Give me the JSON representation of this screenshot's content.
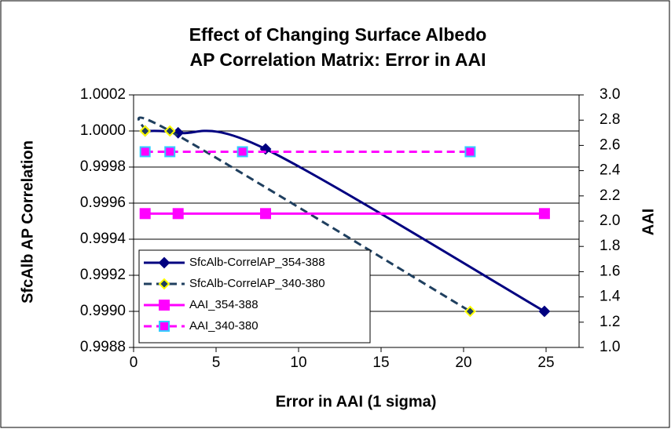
{
  "chart_data": {
    "type": "line",
    "title": [
      "Effect of Changing Surface Albedo",
      "AP Correlation Matrix: Error in AAI"
    ],
    "x_label": "Error in AAI (1 sigma)",
    "y_label": "SfcAlb AP Correlation",
    "y2_label": "AAI",
    "xlim": [
      0,
      27
    ],
    "xticks": [
      0,
      5,
      10,
      15,
      20,
      25
    ],
    "ylim": [
      0.9988,
      1.0002
    ],
    "yticks": [
      {
        "value": 0.9988,
        "label": "0.9988"
      },
      {
        "value": 0.999,
        "label": "0.9990"
      },
      {
        "value": 0.9992,
        "label": "0.9992"
      },
      {
        "value": 0.9994,
        "label": "0.9994"
      },
      {
        "value": 0.9996,
        "label": "0.9996"
      },
      {
        "value": 0.9998,
        "label": "0.9998"
      },
      {
        "value": 1.0,
        "label": "1.0000"
      },
      {
        "value": 1.0002,
        "label": "1.0002"
      }
    ],
    "y2lim": [
      1.0,
      3.0
    ],
    "y2ticks": [
      {
        "value": 1.0,
        "label": "1.0"
      },
      1.2,
      1.4,
      1.6,
      1.8,
      {
        "value": 2.0,
        "label": "2.0"
      },
      2.2,
      2.4,
      2.6,
      2.8,
      {
        "value": 3.0,
        "label": "3.0"
      }
    ],
    "grid": true,
    "legend": "lower-left",
    "series": [
      {
        "name": "SfcAlb-CorrelAP_354-388",
        "color": "#000080",
        "dash": false,
        "marker": "diamond",
        "marker_fill": "#000080",
        "marker_stroke": "#000080",
        "smooth": true,
        "x": [
          0.7,
          2.7,
          8.0,
          24.9
        ],
        "values": [
          1.0,
          0.99999,
          0.9999,
          0.999
        ]
      },
      {
        "name": "SfcAlb-CorrelAP_340-380",
        "color": "#1f3f5f",
        "dash": true,
        "marker": "diamond",
        "marker_fill": "#1f3f5f",
        "marker_stroke": "#ffff00",
        "smooth": true,
        "x": [
          0.7,
          2.2,
          20.4
        ],
        "values": [
          1.0,
          1.0,
          0.999
        ]
      },
      {
        "name": "AAI_354-388",
        "color": "#ff00ff",
        "dash": false,
        "marker": "square",
        "marker_fill": "#ff00ff",
        "marker_stroke": "#ff00ff",
        "smooth": false,
        "axis": "y2",
        "x": [
          0.7,
          2.7,
          8.0,
          24.9
        ],
        "values": [
          2.06,
          2.06,
          2.06,
          2.06
        ]
      },
      {
        "name": "AAI_340-380",
        "color": "#ff00ff",
        "dash": true,
        "marker": "square",
        "marker_fill": "#ff00ff",
        "marker_stroke": "#33ccff",
        "smooth": false,
        "axis": "y2",
        "x": [
          0.7,
          2.2,
          6.6,
          20.4
        ],
        "values": [
          2.55,
          2.55,
          2.55,
          2.55
        ]
      }
    ]
  }
}
